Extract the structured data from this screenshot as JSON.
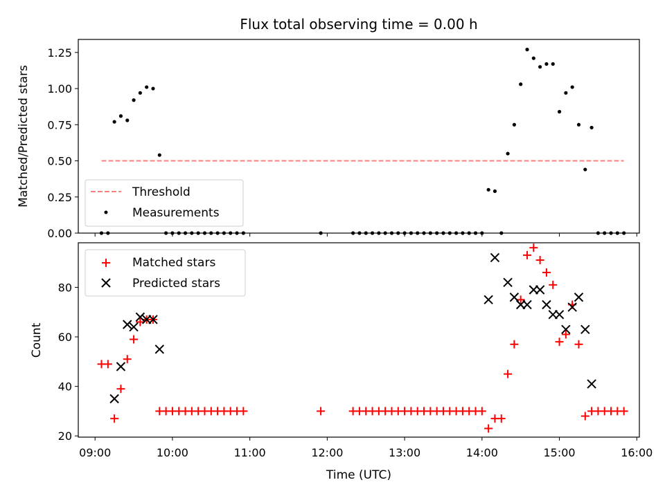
{
  "chart_data": [
    {
      "type": "scatter",
      "title": "Flux total observing time = 0.00 h",
      "xlabel": "",
      "ylabel": "Matched/Predicted stars",
      "xlim": [
        "08:47",
        "16:02"
      ],
      "ylim": [
        0,
        1.34
      ],
      "yticks": [
        "0.00",
        "0.25",
        "0.50",
        "0.75",
        "1.00",
        "1.25"
      ],
      "ytick_values": [
        0,
        0.25,
        0.5,
        0.75,
        1.0,
        1.25
      ],
      "legend_placement": "lower-left",
      "threshold": {
        "name": "Threshold",
        "value": 0.5,
        "x_start": "09:05",
        "x_end": "15:50",
        "color": "#ff7f7f",
        "style": "dashed"
      },
      "series": [
        {
          "name": "Measurements",
          "color": "#000000",
          "marker": "dot",
          "points": [
            [
              "09:05",
              0
            ],
            [
              "09:10",
              0
            ],
            [
              "09:15",
              0.77
            ],
            [
              "09:20",
              0.81
            ],
            [
              "09:25",
              0.78
            ],
            [
              "09:30",
              0.92
            ],
            [
              "09:35",
              0.97
            ],
            [
              "09:40",
              1.01
            ],
            [
              "09:45",
              1.0
            ],
            [
              "09:50",
              0.54
            ],
            [
              "09:55",
              0
            ],
            [
              "10:00",
              0
            ],
            [
              "10:05",
              0
            ],
            [
              "10:10",
              0
            ],
            [
              "10:15",
              0
            ],
            [
              "10:20",
              0
            ],
            [
              "10:25",
              0
            ],
            [
              "10:30",
              0
            ],
            [
              "10:35",
              0
            ],
            [
              "10:40",
              0
            ],
            [
              "10:45",
              0
            ],
            [
              "10:50",
              0
            ],
            [
              "10:55",
              0
            ],
            [
              "11:55",
              0
            ],
            [
              "12:20",
              0
            ],
            [
              "12:25",
              0
            ],
            [
              "12:30",
              0
            ],
            [
              "12:35",
              0
            ],
            [
              "12:40",
              0
            ],
            [
              "12:45",
              0
            ],
            [
              "12:50",
              0
            ],
            [
              "12:55",
              0
            ],
            [
              "13:00",
              0
            ],
            [
              "13:05",
              0
            ],
            [
              "13:10",
              0
            ],
            [
              "13:15",
              0
            ],
            [
              "13:20",
              0
            ],
            [
              "13:25",
              0
            ],
            [
              "13:30",
              0
            ],
            [
              "13:35",
              0
            ],
            [
              "13:40",
              0
            ],
            [
              "13:45",
              0
            ],
            [
              "13:50",
              0
            ],
            [
              "13:55",
              0
            ],
            [
              "14:00",
              0
            ],
            [
              "14:05",
              0.3
            ],
            [
              "14:10",
              0.29
            ],
            [
              "14:15",
              0
            ],
            [
              "14:20",
              0.55
            ],
            [
              "14:25",
              0.75
            ],
            [
              "14:30",
              1.03
            ],
            [
              "14:35",
              1.27
            ],
            [
              "14:40",
              1.21
            ],
            [
              "14:45",
              1.15
            ],
            [
              "14:50",
              1.17
            ],
            [
              "14:55",
              1.17
            ],
            [
              "15:00",
              0.84
            ],
            [
              "15:05",
              0.97
            ],
            [
              "15:10",
              1.01
            ],
            [
              "15:15",
              0.75
            ],
            [
              "15:20",
              0.44
            ],
            [
              "15:25",
              0.73
            ],
            [
              "15:30",
              0
            ],
            [
              "15:35",
              0
            ],
            [
              "15:40",
              0
            ],
            [
              "15:45",
              0
            ],
            [
              "15:50",
              0
            ]
          ]
        }
      ]
    },
    {
      "type": "scatter",
      "title": "",
      "xlabel": "Time (UTC)",
      "ylabel": "Count",
      "xlim": [
        "08:47",
        "16:02"
      ],
      "ylim": [
        19.5,
        98
      ],
      "yticks": [
        "20",
        "40",
        "60",
        "80"
      ],
      "ytick_values": [
        20,
        40,
        60,
        80
      ],
      "xticks": [
        "09:00",
        "10:00",
        "11:00",
        "12:00",
        "13:00",
        "14:00",
        "15:00",
        "16:00"
      ],
      "legend_placement": "upper-left",
      "series": [
        {
          "name": "Matched stars",
          "color": "#ff0000",
          "marker": "plus",
          "points": [
            [
              "09:05",
              49
            ],
            [
              "09:10",
              49
            ],
            [
              "09:15",
              27
            ],
            [
              "09:20",
              39
            ],
            [
              "09:25",
              51
            ],
            [
              "09:30",
              59
            ],
            [
              "09:35",
              66
            ],
            [
              "09:40",
              67
            ],
            [
              "09:45",
              67
            ],
            [
              "09:50",
              30
            ],
            [
              "09:55",
              30
            ],
            [
              "10:00",
              30
            ],
            [
              "10:05",
              30
            ],
            [
              "10:10",
              30
            ],
            [
              "10:15",
              30
            ],
            [
              "10:20",
              30
            ],
            [
              "10:25",
              30
            ],
            [
              "10:30",
              30
            ],
            [
              "10:35",
              30
            ],
            [
              "10:40",
              30
            ],
            [
              "10:45",
              30
            ],
            [
              "10:50",
              30
            ],
            [
              "10:55",
              30
            ],
            [
              "11:55",
              30
            ],
            [
              "12:20",
              30
            ],
            [
              "12:25",
              30
            ],
            [
              "12:30",
              30
            ],
            [
              "12:35",
              30
            ],
            [
              "12:40",
              30
            ],
            [
              "12:45",
              30
            ],
            [
              "12:50",
              30
            ],
            [
              "12:55",
              30
            ],
            [
              "13:00",
              30
            ],
            [
              "13:05",
              30
            ],
            [
              "13:10",
              30
            ],
            [
              "13:15",
              30
            ],
            [
              "13:20",
              30
            ],
            [
              "13:25",
              30
            ],
            [
              "13:30",
              30
            ],
            [
              "13:35",
              30
            ],
            [
              "13:40",
              30
            ],
            [
              "13:45",
              30
            ],
            [
              "13:50",
              30
            ],
            [
              "13:55",
              30
            ],
            [
              "14:00",
              30
            ],
            [
              "14:05",
              23
            ],
            [
              "14:10",
              27
            ],
            [
              "14:15",
              27
            ],
            [
              "14:20",
              45
            ],
            [
              "14:25",
              57
            ],
            [
              "14:30",
              75
            ],
            [
              "14:35",
              93
            ],
            [
              "14:40",
              96
            ],
            [
              "14:45",
              91
            ],
            [
              "14:50",
              86
            ],
            [
              "14:55",
              81
            ],
            [
              "15:00",
              58
            ],
            [
              "15:05",
              61
            ],
            [
              "15:10",
              73
            ],
            [
              "15:15",
              57
            ],
            [
              "15:20",
              28
            ],
            [
              "15:25",
              30
            ],
            [
              "15:30",
              30
            ],
            [
              "15:35",
              30
            ],
            [
              "15:40",
              30
            ],
            [
              "15:45",
              30
            ],
            [
              "15:50",
              30
            ]
          ]
        },
        {
          "name": "Predicted stars",
          "color": "#000000",
          "marker": "x",
          "points": [
            [
              "09:15",
              35
            ],
            [
              "09:20",
              48
            ],
            [
              "09:25",
              65
            ],
            [
              "09:30",
              64
            ],
            [
              "09:35",
              68
            ],
            [
              "09:40",
              67
            ],
            [
              "09:45",
              67
            ],
            [
              "09:50",
              55
            ],
            [
              "14:05",
              75
            ],
            [
              "14:10",
              92
            ],
            [
              "14:20",
              82
            ],
            [
              "14:25",
              76
            ],
            [
              "14:30",
              73
            ],
            [
              "14:35",
              73
            ],
            [
              "14:40",
              79
            ],
            [
              "14:45",
              79
            ],
            [
              "14:50",
              73
            ],
            [
              "14:55",
              69
            ],
            [
              "15:00",
              69
            ],
            [
              "15:05",
              63
            ],
            [
              "15:10",
              72
            ],
            [
              "15:15",
              76
            ],
            [
              "15:20",
              63
            ],
            [
              "15:25",
              41
            ]
          ]
        }
      ]
    }
  ]
}
